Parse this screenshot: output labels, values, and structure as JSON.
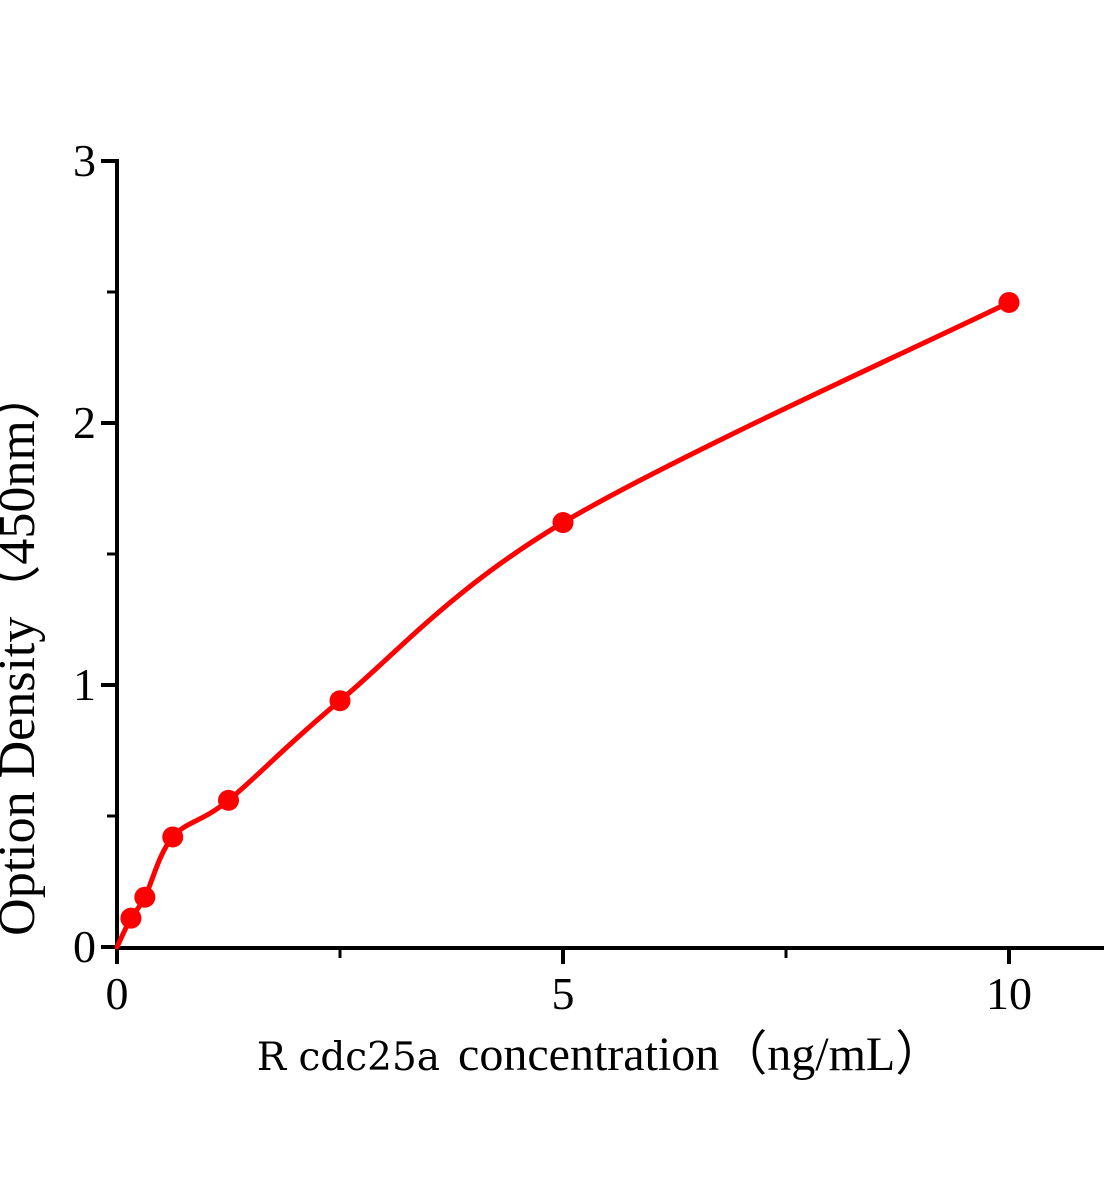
{
  "figure": {
    "background": "#ffffff"
  },
  "chart_data": {
    "type": "scatter",
    "title": "",
    "xlabel": "R cdc25a concentration（ng/mL）",
    "xlabel_prefix": "R cdc25a",
    "xlabel_rest": "concentration（ng/mL）",
    "ylabel": "Option Density（450nm）",
    "x": [
      0.156,
      0.312,
      0.625,
      1.25,
      2.5,
      5,
      10
    ],
    "y": [
      0.11,
      0.19,
      0.42,
      0.56,
      0.94,
      1.62,
      2.46
    ],
    "curve_start": [
      0,
      0
    ],
    "xlim": [
      0,
      11.06
    ],
    "ylim": [
      0,
      3
    ],
    "x_ticks_major": [
      0,
      5,
      10
    ],
    "x_tick_labels": [
      "0",
      "5",
      "10"
    ],
    "x_ticks_minor": [
      2.5,
      7.5
    ],
    "y_ticks_major": [
      0,
      1,
      2,
      3
    ],
    "y_tick_labels": [
      "0",
      "1",
      "2",
      "3"
    ],
    "y_ticks_minor": [
      0.5,
      1.5,
      2.5
    ],
    "grid": false,
    "legend": "none",
    "colors": {
      "series": "#ff0000",
      "axis": "#000000",
      "background": "#ffffff"
    }
  }
}
